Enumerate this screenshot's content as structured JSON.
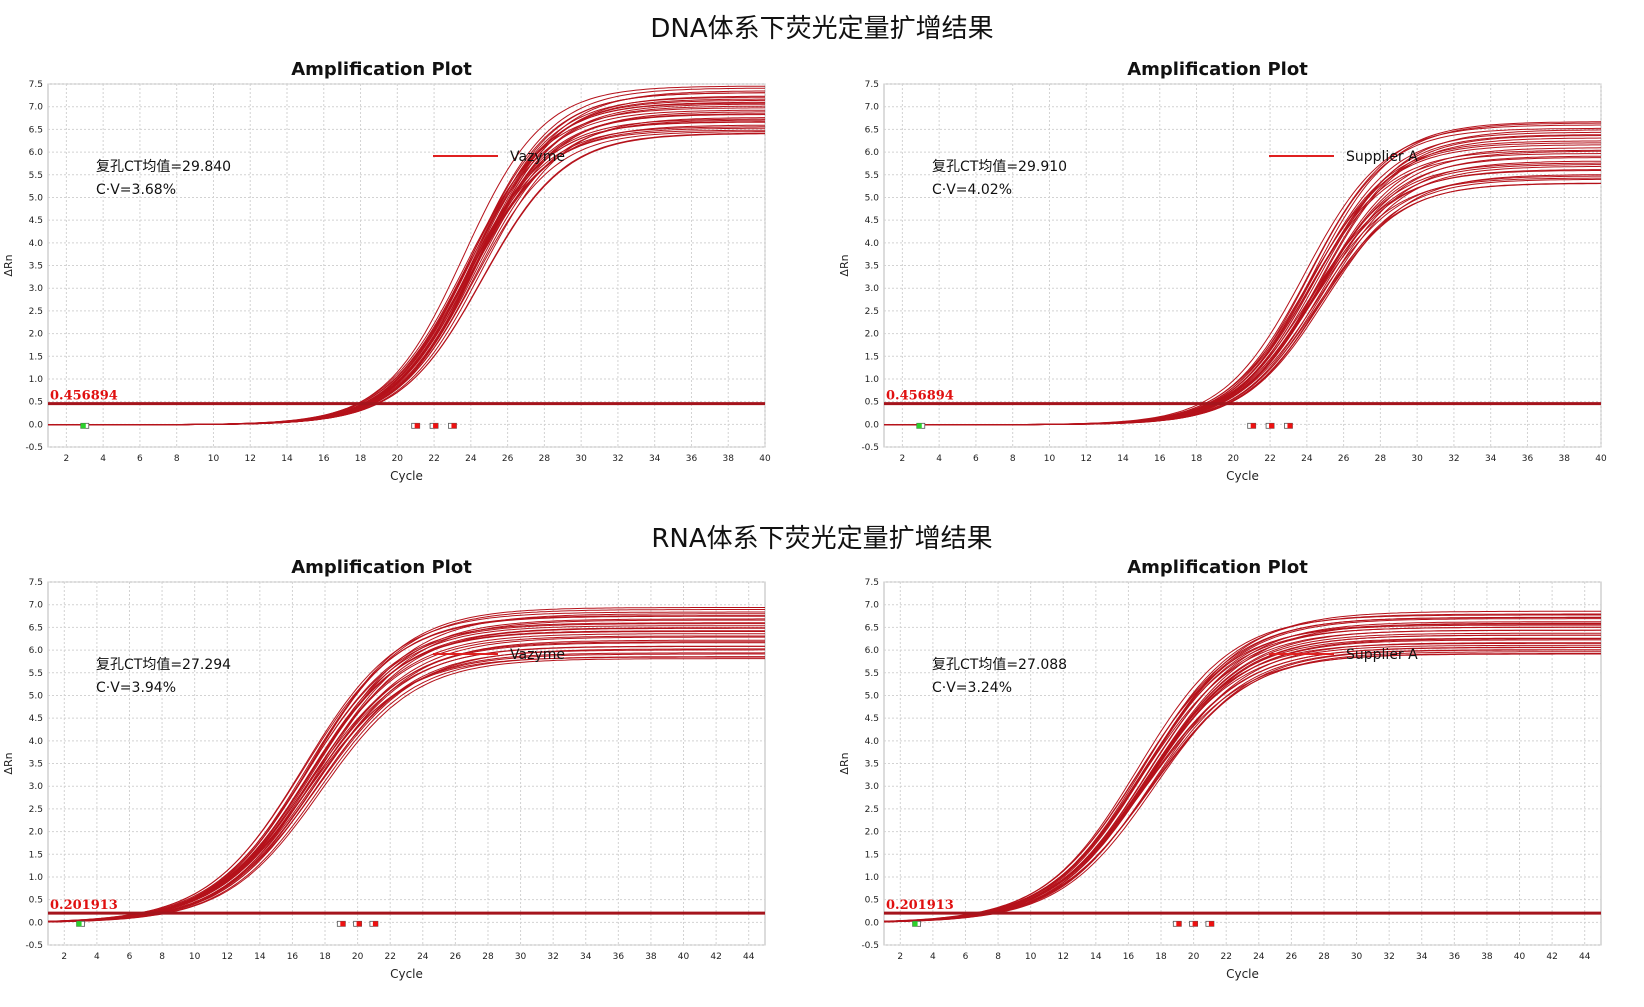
{
  "page": {
    "dna_title": "DNA体系下荧光定量扩增结果",
    "rna_title": "RNA体系下荧光定量扩增结果"
  },
  "chart_data": [
    {
      "type": "line",
      "title": "Amplification Plot",
      "xlabel": "Cycle",
      "ylabel": "ΔRn",
      "xlim": [
        1,
        40
      ],
      "ylim": [
        -0.5,
        7.5
      ],
      "xticks": [
        2,
        4,
        6,
        8,
        10,
        12,
        14,
        16,
        18,
        20,
        22,
        24,
        26,
        28,
        30,
        32,
        34,
        36,
        38,
        40
      ],
      "yticks": [
        -0.5,
        0.0,
        0.5,
        1.0,
        1.5,
        2.0,
        2.5,
        3.0,
        3.5,
        4.0,
        4.5,
        5.0,
        5.5,
        6.0,
        6.5,
        7.0,
        7.5
      ],
      "grid": true,
      "legend": "Vazyme",
      "legend_position": "top-center",
      "series_color": "#b5121b",
      "threshold": 0.456894,
      "threshold_label": "0.456894",
      "annotation": [
        "复孔CT均值=29.840",
        "C·V=3.68%"
      ],
      "mean_ct": 29.84,
      "plateau_range": [
        6.4,
        7.45
      ],
      "replicates": 30,
      "baseline_markers": [
        3,
        21,
        22,
        23
      ]
    },
    {
      "type": "line",
      "title": "Amplification Plot",
      "xlabel": "Cycle",
      "ylabel": "ΔRn",
      "xlim": [
        1,
        40
      ],
      "ylim": [
        -0.5,
        7.5
      ],
      "xticks": [
        2,
        4,
        6,
        8,
        10,
        12,
        14,
        16,
        18,
        20,
        22,
        24,
        26,
        28,
        30,
        32,
        34,
        36,
        38,
        40
      ],
      "yticks": [
        -0.5,
        0.0,
        0.5,
        1.0,
        1.5,
        2.0,
        2.5,
        3.0,
        3.5,
        4.0,
        4.5,
        5.0,
        5.5,
        6.0,
        6.5,
        7.0,
        7.5
      ],
      "grid": true,
      "legend": "Supplier A",
      "legend_position": "top-center",
      "series_color": "#b5121b",
      "threshold": 0.456894,
      "threshold_label": "0.456894",
      "annotation": [
        "复孔CT均值=29.910",
        "C·V=4.02%"
      ],
      "mean_ct": 29.91,
      "plateau_range": [
        5.3,
        6.7
      ],
      "replicates": 30,
      "baseline_markers": [
        3,
        21,
        22,
        23
      ]
    },
    {
      "type": "line",
      "title": "Amplification Plot",
      "xlabel": "Cycle",
      "ylabel": "ΔRn",
      "xlim": [
        1,
        45
      ],
      "ylim": [
        -0.5,
        7.5
      ],
      "xticks": [
        2,
        4,
        6,
        8,
        10,
        12,
        14,
        16,
        18,
        20,
        22,
        24,
        26,
        28,
        30,
        32,
        34,
        36,
        38,
        40,
        42,
        44
      ],
      "yticks": [
        -0.5,
        0.0,
        0.5,
        1.0,
        1.5,
        2.0,
        2.5,
        3.0,
        3.5,
        4.0,
        4.5,
        5.0,
        5.5,
        6.0,
        6.5,
        7.0,
        7.5
      ],
      "grid": true,
      "legend": "Vazyme",
      "legend_position": "top-center",
      "series_color": "#b5121b",
      "threshold": 0.201913,
      "threshold_label": "0.201913",
      "annotation": [
        "复孔CT均值=27.294",
        "C·V=3.94%"
      ],
      "mean_ct": 27.294,
      "plateau_range": [
        5.8,
        6.95
      ],
      "replicates": 30,
      "baseline_markers": [
        3,
        19,
        20,
        21
      ]
    },
    {
      "type": "line",
      "title": "Amplification Plot",
      "xlabel": "Cycle",
      "ylabel": "ΔRn",
      "xlim": [
        1,
        45
      ],
      "ylim": [
        -0.5,
        7.5
      ],
      "xticks": [
        2,
        4,
        6,
        8,
        10,
        12,
        14,
        16,
        18,
        20,
        22,
        24,
        26,
        28,
        30,
        32,
        34,
        36,
        38,
        40,
        42,
        44
      ],
      "yticks": [
        -0.5,
        0.0,
        0.5,
        1.0,
        1.5,
        2.0,
        2.5,
        3.0,
        3.5,
        4.0,
        4.5,
        5.0,
        5.5,
        6.0,
        6.5,
        7.0,
        7.5
      ],
      "grid": true,
      "legend": "Supplier A",
      "legend_position": "top-center",
      "series_color": "#b5121b",
      "threshold": 0.201913,
      "threshold_label": "0.201913",
      "annotation": [
        "复孔CT均值=27.088",
        "C·V=3.24%"
      ],
      "mean_ct": 27.088,
      "plateau_range": [
        5.9,
        6.85
      ],
      "replicates": 30,
      "baseline_markers": [
        3,
        19,
        20,
        21
      ]
    }
  ]
}
